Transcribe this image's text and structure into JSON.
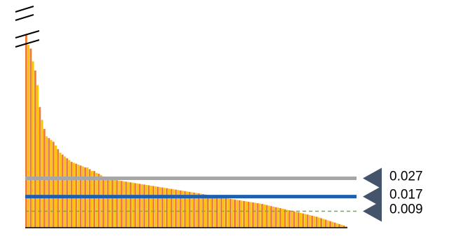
{
  "chart_data": {
    "type": "bar",
    "title": "",
    "xlabel": "",
    "ylabel": "",
    "ylim": [
      0,
      0.11
    ],
    "axis_break": true,
    "grid": false,
    "legend": "none",
    "bar_colors": [
      "#ED7D31",
      "#FFC000"
    ],
    "values": [
      0.106,
      0.1,
      0.098,
      0.091,
      0.086,
      0.078,
      0.066,
      0.059,
      0.054,
      0.05,
      0.049,
      0.048,
      0.047,
      0.045,
      0.043,
      0.041,
      0.04,
      0.039,
      0.038,
      0.037,
      0.036,
      0.0355,
      0.035,
      0.0345,
      0.034,
      0.0335,
      0.033,
      0.033,
      0.032,
      0.031,
      0.031,
      0.03,
      0.0295,
      0.0288,
      0.028,
      0.0275,
      0.027,
      0.0267,
      0.0264,
      0.0262,
      0.026,
      0.0258,
      0.0256,
      0.0254,
      0.0252,
      0.025,
      0.0248,
      0.0246,
      0.0244,
      0.0242,
      0.024,
      0.0238,
      0.0236,
      0.0234,
      0.0232,
      0.023,
      0.0228,
      0.0226,
      0.0224,
      0.0222,
      0.022,
      0.0218,
      0.0216,
      0.0214,
      0.0212,
      0.021,
      0.0208,
      0.0206,
      0.0204,
      0.0202,
      0.02,
      0.0198,
      0.0196,
      0.0194,
      0.0192,
      0.019,
      0.0188,
      0.0186,
      0.0184,
      0.0182,
      0.018,
      0.0178,
      0.0176,
      0.0174,
      0.0172,
      0.017,
      0.0168,
      0.0166,
      0.0163,
      0.016,
      0.0158,
      0.0156,
      0.0154,
      0.0152,
      0.015,
      0.0148,
      0.0146,
      0.0144,
      0.0142,
      0.014,
      0.0138,
      0.0136,
      0.0134,
      0.0132,
      0.013,
      0.0127,
      0.0124,
      0.0121,
      0.0118,
      0.0115,
      0.0112,
      0.011,
      0.0107,
      0.0104,
      0.0101,
      0.0098,
      0.0095,
      0.0092,
      0.009,
      0.0087,
      0.0084,
      0.0081,
      0.0078,
      0.0075,
      0.0072,
      0.0069,
      0.0066,
      0.0063,
      0.006,
      0.0056,
      0.0052,
      0.0048,
      0.0044,
      0.004,
      0.0036,
      0.0032,
      0.0028,
      0.0024,
      0.002,
      0.0016,
      0.0012,
      0.0008
    ],
    "thresholds": [
      {
        "label": "0.027",
        "value": 0.027,
        "color": "#A6A6A6",
        "style": "solid-thick"
      },
      {
        "label": "0.017",
        "value": 0.017,
        "color": "#1F5FAF",
        "style": "solid-thick"
      },
      {
        "label": "0.009",
        "value": 0.009,
        "color": "#70AD47",
        "style": "dashed"
      }
    ]
  }
}
